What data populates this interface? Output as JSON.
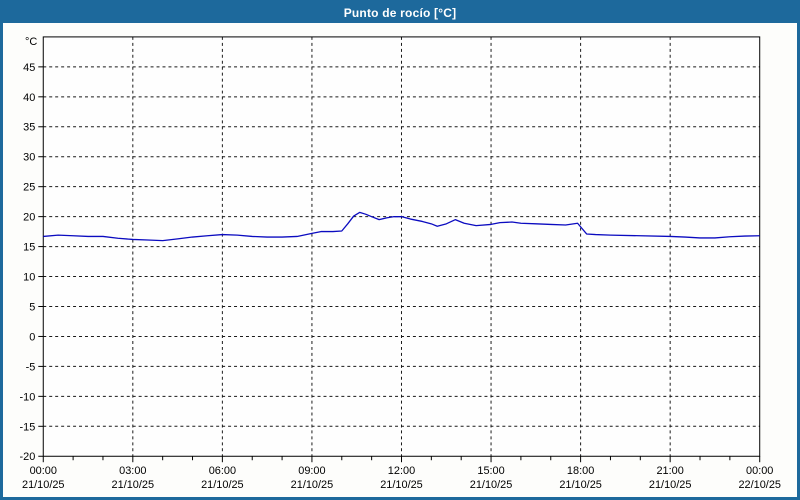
{
  "window": {
    "title": "Punto de rocío [°C]",
    "colors": {
      "titlebar_bg": "#1d699c",
      "titlebar_text": "#ffffff",
      "window_border": "#1d699c",
      "background": "#fdfdfb",
      "plot_background": "#fefefe",
      "axis": "#000000",
      "grid": "#1a1a1a",
      "tick_text": "#000000",
      "series_line": "#0b0bc0"
    }
  },
  "chart_data": {
    "type": "line",
    "title": "Punto de rocío [°C]",
    "ylabel": "°C",
    "ylim": [
      -20,
      50
    ],
    "ytick_step": 5,
    "ytick_labeled_range": [
      -20,
      45
    ],
    "grid": "dashed",
    "legend": "none",
    "x_hours_range": [
      0,
      24
    ],
    "minor_xtick_every_hours": 1,
    "xticks": [
      {
        "hour": 0,
        "time": "00:00",
        "date": "21/10/25"
      },
      {
        "hour": 3,
        "time": "03:00",
        "date": "21/10/25"
      },
      {
        "hour": 6,
        "time": "06:00",
        "date": "21/10/25"
      },
      {
        "hour": 9,
        "time": "09:00",
        "date": "21/10/25"
      },
      {
        "hour": 12,
        "time": "12:00",
        "date": "21/10/25"
      },
      {
        "hour": 15,
        "time": "15:00",
        "date": "21/10/25"
      },
      {
        "hour": 18,
        "time": "18:00",
        "date": "21/10/25"
      },
      {
        "hour": 21,
        "time": "21:00",
        "date": "21/10/25"
      },
      {
        "hour": 24,
        "time": "00:00",
        "date": "22/10/25"
      }
    ],
    "series": [
      {
        "name": "Punto de rocío",
        "color": "#0b0bc0",
        "points": [
          [
            0,
            16.7
          ],
          [
            0.5,
            16.9
          ],
          [
            1,
            16.8
          ],
          [
            1.5,
            16.7
          ],
          [
            2,
            16.7
          ],
          [
            2.5,
            16.4
          ],
          [
            3,
            16.2
          ],
          [
            3.5,
            16.1
          ],
          [
            4,
            16.0
          ],
          [
            4.5,
            16.3
          ],
          [
            5,
            16.6
          ],
          [
            5.5,
            16.8
          ],
          [
            6,
            17.0
          ],
          [
            6.5,
            16.9
          ],
          [
            7,
            16.7
          ],
          [
            7.5,
            16.6
          ],
          [
            8,
            16.6
          ],
          [
            8.5,
            16.7
          ],
          [
            9,
            17.2
          ],
          [
            9.3,
            17.5
          ],
          [
            9.7,
            17.5
          ],
          [
            10,
            17.6
          ],
          [
            10.2,
            18.8
          ],
          [
            10.4,
            20.1
          ],
          [
            10.6,
            20.7
          ],
          [
            10.8,
            20.4
          ],
          [
            11,
            20.0
          ],
          [
            11.25,
            19.5
          ],
          [
            11.5,
            19.8
          ],
          [
            11.75,
            20.0
          ],
          [
            12,
            20.0
          ],
          [
            12.3,
            19.6
          ],
          [
            12.7,
            19.2
          ],
          [
            13,
            18.8
          ],
          [
            13.2,
            18.4
          ],
          [
            13.5,
            18.8
          ],
          [
            13.8,
            19.5
          ],
          [
            14.1,
            18.9
          ],
          [
            14.5,
            18.5
          ],
          [
            15,
            18.7
          ],
          [
            15.3,
            19.0
          ],
          [
            15.7,
            19.1
          ],
          [
            16,
            18.9
          ],
          [
            16.5,
            18.8
          ],
          [
            17,
            18.7
          ],
          [
            17.5,
            18.6
          ],
          [
            17.9,
            18.9
          ],
          [
            18.2,
            17.1
          ],
          [
            18.5,
            17.0
          ],
          [
            19,
            16.9
          ],
          [
            20,
            16.8
          ],
          [
            21,
            16.7
          ],
          [
            21.5,
            16.6
          ],
          [
            22,
            16.45
          ],
          [
            22.5,
            16.45
          ],
          [
            23,
            16.65
          ],
          [
            23.5,
            16.75
          ],
          [
            24,
            16.8
          ]
        ]
      }
    ]
  }
}
